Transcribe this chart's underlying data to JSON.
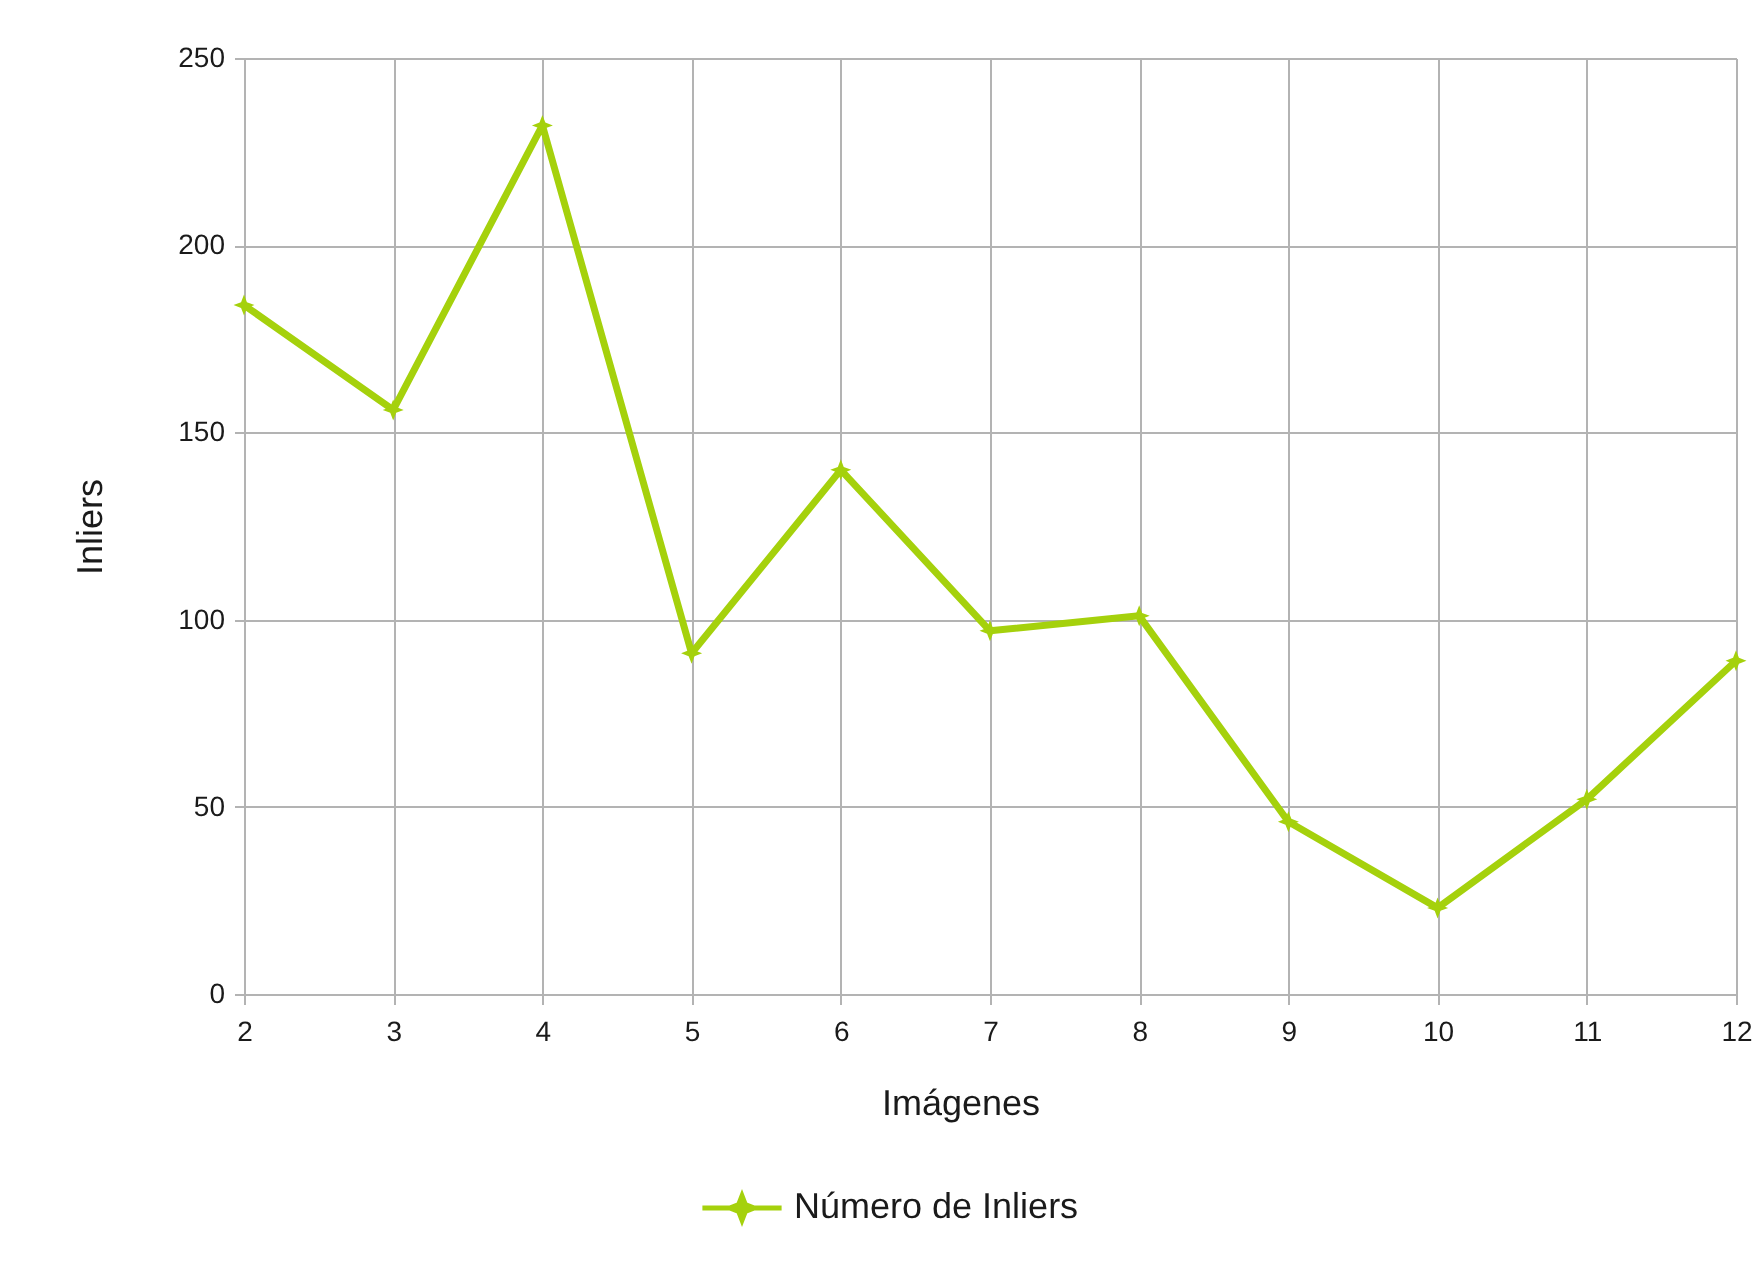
{
  "chart_data": {
    "type": "line",
    "xlabel": "Imágenes",
    "ylabel": "Inliers",
    "x": [
      2,
      3,
      4,
      5,
      6,
      7,
      8,
      9,
      10,
      11,
      12
    ],
    "series": [
      {
        "name": "Número de Inliers",
        "color": "#a5d10c",
        "values": [
          184,
          156,
          232,
          91,
          140,
          97,
          101,
          46,
          23,
          52,
          89
        ]
      }
    ],
    "xlim": [
      2,
      12
    ],
    "xticks": [
      2,
      3,
      4,
      5,
      6,
      7,
      8,
      9,
      10,
      11,
      12
    ],
    "ylim": [
      0,
      250
    ],
    "yticks": [
      0,
      50,
      100,
      150,
      200,
      250
    ],
    "grid": true,
    "legend": "bottom",
    "marker": "star",
    "line_style": "solid"
  }
}
